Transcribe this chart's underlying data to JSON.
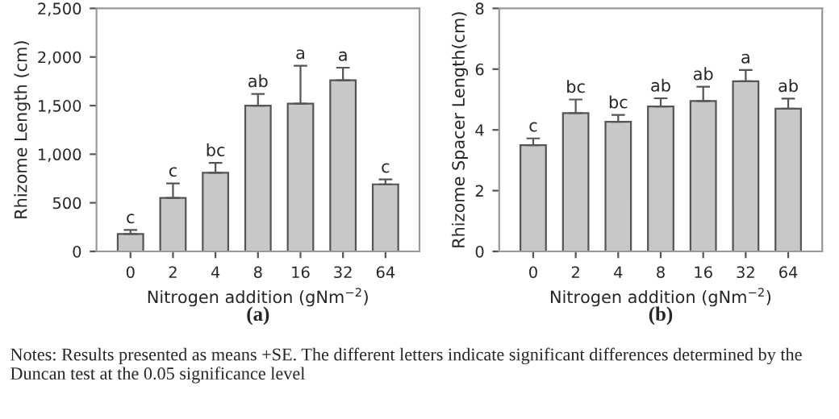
{
  "chart_data": [
    {
      "type": "bar",
      "title": "(a)",
      "xlabel": "Nitrogen addition (gNm$^{−2}$)",
      "ylabel": "Rhizome Length (cm)",
      "categories": [
        "0",
        "2",
        "4",
        "8",
        "16",
        "32",
        "64"
      ],
      "series": [
        {
          "color": "#c8c8c8",
          "values": [
            180,
            550,
            810,
            1500,
            1520,
            1760,
            690
          ],
          "errors": [
            [
              180,
              220
            ],
            [
              550,
              700
            ],
            [
              810,
              910
            ],
            [
              1500,
              1620
            ],
            [
              1520,
              1910
            ],
            [
              1760,
              1890
            ],
            [
              690,
              740
            ]
          ]
        }
      ],
      "ylim": [
        0,
        2500
      ],
      "yticks": [
        0,
        500,
        {
          "value": 1000,
          "label": "1,000"
        },
        {
          "value": 1500,
          "label": "1,500"
        },
        {
          "value": 2000,
          "label": "2,000"
        },
        {
          "value": 2500,
          "label": "2,500"
        }
      ],
      "annotations": [
        {
          "text": "c",
          "x": "0",
          "y": 180
        },
        {
          "text": "c",
          "x": "2",
          "y": 550
        },
        {
          "text": "bc",
          "x": "4",
          "y": 810
        },
        {
          "text": "ab",
          "x": "8",
          "y": 1500
        },
        {
          "text": "a",
          "x": "16",
          "y": 1520
        },
        {
          "text": "a",
          "x": "32",
          "y": 1760
        },
        {
          "text": "c",
          "x": "64",
          "y": 690
        },
        "Notes: Results presented as means +SE. The different letters indicate significant differences determined by the Duncan test at the 0.05 significance level"
      ]
    },
    {
      "type": "bar",
      "title": "(b)",
      "xlabel": "Nitrogen addition (gNm$^{−2}$)",
      "ylabel": "Rhizome Spacer Length(cm)",
      "categories": [
        "0",
        "2",
        "4",
        "8",
        "16",
        "32",
        "64"
      ],
      "series": [
        {
          "color": "#c8c8c8",
          "values": [
            3.5,
            4.55,
            4.27,
            4.77,
            4.95,
            5.6,
            4.7
          ],
          "errors": [
            [
              3.5,
              3.72
            ],
            [
              4.55,
              5.0
            ],
            [
              4.27,
              4.49
            ],
            [
              4.77,
              5.04
            ],
            [
              4.95,
              5.42
            ],
            [
              5.6,
              5.97
            ],
            [
              4.7,
              5.03
            ]
          ]
        }
      ],
      "ylim": [
        0,
        8
      ],
      "yticks": [
        0,
        2,
        4,
        6,
        8
      ],
      "annotations": [
        {
          "text": "c",
          "x": "0",
          "y": 3.5
        },
        {
          "text": "bc",
          "x": "2",
          "y": 4.55
        },
        {
          "text": "bc",
          "x": "4",
          "y": 4.27
        },
        {
          "text": "ab",
          "x": "8",
          "y": 4.77
        },
        {
          "text": "ab",
          "x": "16",
          "y": 4.95
        },
        {
          "text": "a",
          "x": "32",
          "y": 5.6
        },
        {
          "text": "ab",
          "x": "64",
          "y": 4.7
        }
      ]
    }
  ]
}
